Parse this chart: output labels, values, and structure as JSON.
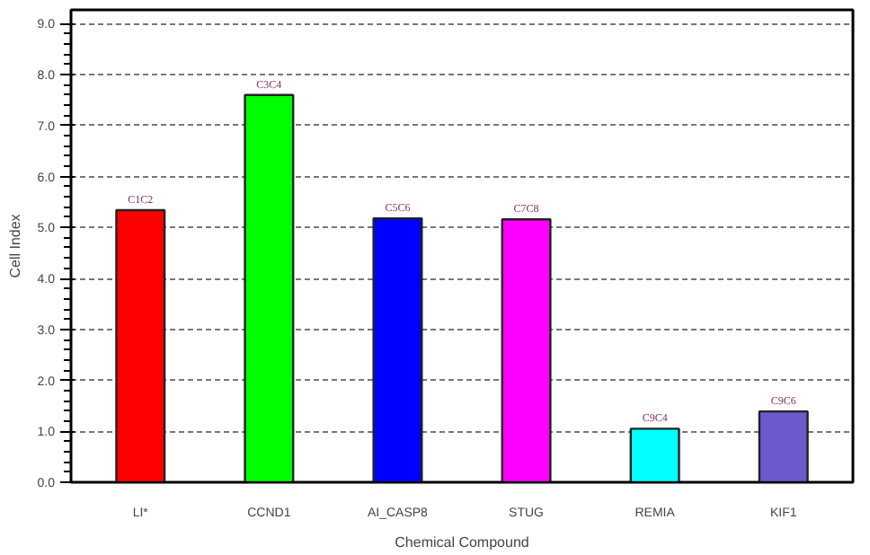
{
  "chart_data": {
    "type": "bar",
    "xlabel": "Chemical Compound",
    "ylabel": "Cell Index",
    "categories": [
      "LI*",
      "CCND1",
      "AI_CASP8",
      "STUG",
      "REMIA",
      "KIF1"
    ],
    "values": [
      5.34,
      7.6,
      5.18,
      5.16,
      1.05,
      1.39
    ],
    "colors": [
      "#ff0000",
      "#00ff00",
      "#0000ff",
      "#ff00ff",
      "#00ffff",
      "#6a5acd"
    ],
    "value_labels": [
      "C1C2",
      "C3C4",
      "C5C6",
      "C7C8",
      "C9C4",
      "C9C6"
    ],
    "ylim": [
      0,
      9.27
    ],
    "yticks": [
      {
        "value": 0,
        "label": "0.0"
      },
      {
        "value": 1,
        "label": "1.0"
      },
      {
        "value": 2,
        "label": "2.0"
      },
      {
        "value": 3,
        "label": "3.0"
      },
      {
        "value": 4,
        "label": "4.0"
      },
      {
        "value": 5,
        "label": "5.0"
      },
      {
        "value": 6,
        "label": "6.0"
      },
      {
        "value": 7,
        "label": "7.0"
      },
      {
        "value": 8,
        "label": "8.0"
      },
      {
        "value": 9,
        "label": "9.0"
      }
    ],
    "grid": "y"
  }
}
